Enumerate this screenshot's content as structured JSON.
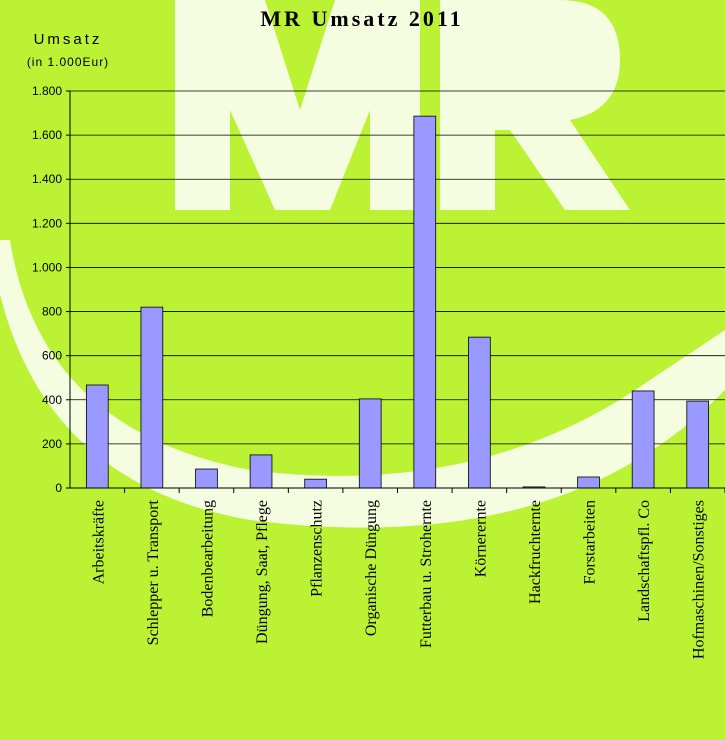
{
  "chart_data": {
    "type": "bar",
    "title": "MR Umsatz 2011",
    "y_label": "Umsatz",
    "y_unit": "(in 1.000Eur)",
    "categories": [
      "Arbeitskräfte",
      "Schlepper u. Transport",
      "Bodenbearbeitung",
      "Düngung, Saat, Pflege",
      "Pflanzenschutz",
      "Organische Düngung",
      "Futterbau u. Strohernte",
      "Körnerernte",
      "Hackfruchternte",
      "Forstarbeiten",
      "Landschaftspfl. Co",
      "Hofmaschinen/Sonstiges"
    ],
    "values": [
      467,
      820,
      86,
      150,
      40,
      404,
      1686,
      684,
      5,
      50,
      440,
      394
    ],
    "color": "#9999ff",
    "ylim": [
      0,
      1800
    ],
    "yticks": [
      0,
      {
        "value": 200,
        "label": "200"
      },
      {
        "value": 400,
        "label": "400"
      },
      {
        "value": 600,
        "label": "600"
      },
      {
        "value": 800,
        "label": "800"
      },
      {
        "value": 1000,
        "label": "1.000"
      },
      {
        "value": 1200,
        "label": "1.200"
      },
      {
        "value": 1400,
        "label": "1.400"
      },
      {
        "value": 1600,
        "label": "1.600"
      },
      {
        "value": 1800,
        "label": "1.800"
      }
    ],
    "grid": true
  }
}
